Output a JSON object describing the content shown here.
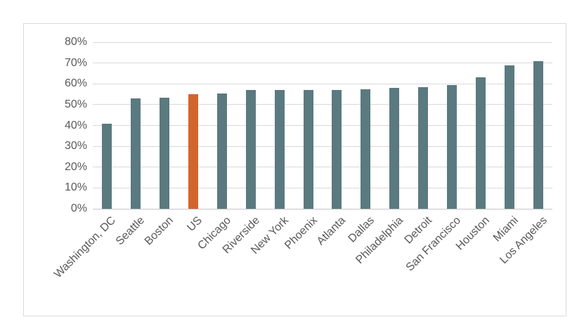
{
  "chart_data": {
    "type": "bar",
    "title": "",
    "xlabel": "",
    "ylabel": "",
    "categories": [
      "Washington, DC",
      "Seattle",
      "Boston",
      "US",
      "Chicago",
      "Riverside",
      "New York",
      "Phoenix",
      "Atlanta",
      "Dallas",
      "Philadelphia",
      "Detroit",
      "San Francisco",
      "Houston",
      "Miami",
      "Los Angeles"
    ],
    "values": [
      41,
      53,
      53.5,
      55,
      55.5,
      57,
      57,
      57,
      57,
      57.5,
      58,
      58.5,
      59.5,
      63,
      69,
      71
    ],
    "highlight_category": "US",
    "highlight_index": 3,
    "ylim": [
      0,
      80
    ],
    "ytick_step": 10,
    "ytick_labels": [
      "0%",
      "10%",
      "20%",
      "30%",
      "40%",
      "50%",
      "60%",
      "70%",
      "80%"
    ],
    "grid": true,
    "legend": "none",
    "colors": {
      "bar": "#5A7A80",
      "highlight": "#D2652D",
      "gridline": "#D9D9D9",
      "axis_line": "#C6C6C6",
      "tick_text": "#595959",
      "frame_border": "#D9D9D9",
      "background": "#FFFFFF"
    }
  }
}
